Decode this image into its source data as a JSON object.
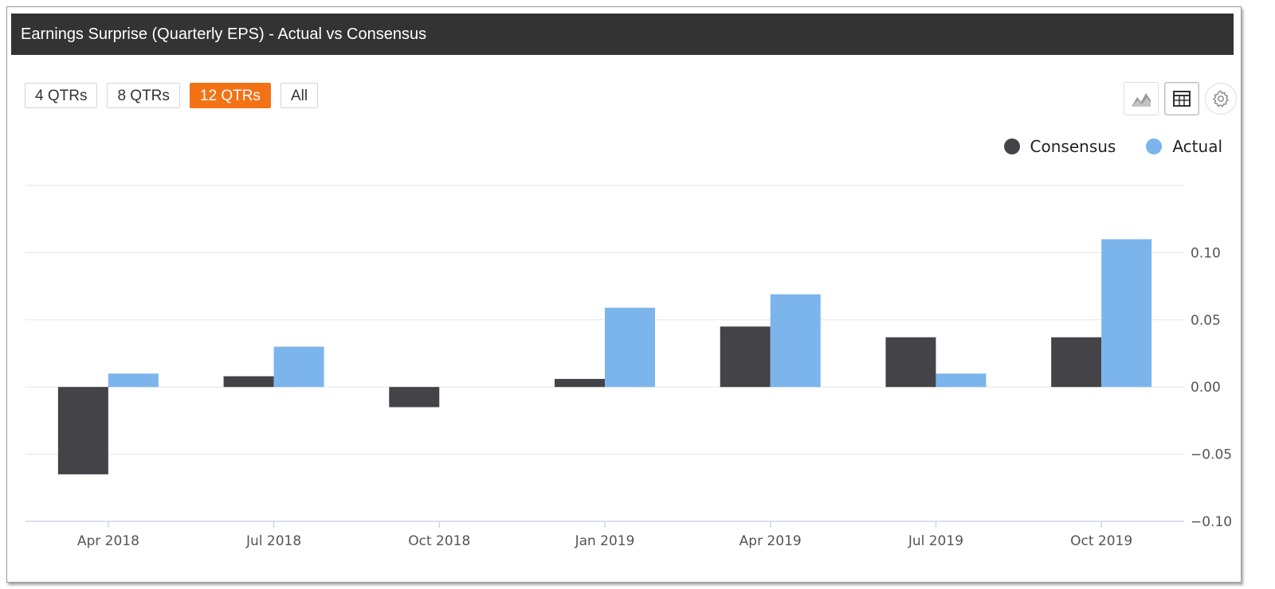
{
  "header": {
    "title": "Earnings Surprise (Quarterly EPS) - Actual vs Consensus"
  },
  "range_buttons": [
    {
      "label": "4 QTRs",
      "active": false
    },
    {
      "label": "8 QTRs",
      "active": false
    },
    {
      "label": "12 QTRs",
      "active": true
    },
    {
      "label": "All",
      "active": false
    }
  ],
  "toolbar": {
    "chart_view_icon": "area-chart-icon",
    "table_view_icon": "table-icon",
    "settings_icon": "gear-icon"
  },
  "colors": {
    "accent": "#f47216",
    "header_bg": "#333333",
    "consensus": "#434348",
    "actual": "#7cb5ec",
    "grid": "#e6e6e6"
  },
  "chart_data": {
    "type": "bar",
    "categories": [
      "Apr 2018",
      "Jul 2018",
      "Oct 2018",
      "Jan 2019",
      "Apr 2019",
      "Jul 2019",
      "Oct 2019"
    ],
    "series": [
      {
        "name": "Consensus",
        "color": "#434348",
        "values": [
          -0.065,
          0.008,
          -0.015,
          0.006,
          0.045,
          0.037,
          0.037
        ]
      },
      {
        "name": "Actual",
        "color": "#7cb5ec",
        "values": [
          0.01,
          0.03,
          null,
          0.059,
          0.069,
          0.01,
          0.11
        ]
      }
    ],
    "y_ticks": [
      "−0.10",
      "−0.05",
      "0.00",
      "0.05",
      "0.10"
    ],
    "y_tick_values": [
      -0.1,
      -0.05,
      0,
      0.05,
      0.1
    ],
    "ylim": [
      -0.1,
      0.15
    ],
    "y_axis_side": "right",
    "legend_position": "top-right",
    "grid": true
  }
}
